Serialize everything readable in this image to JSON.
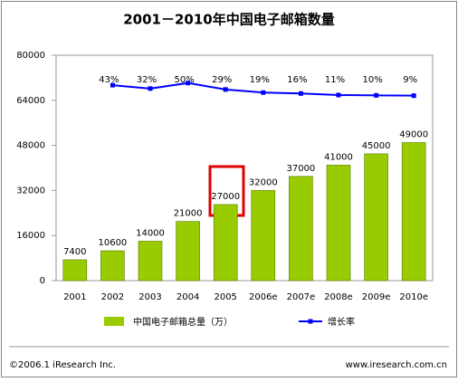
{
  "chart_data": {
    "type": "bar",
    "title": "2001－2010年中国电子邮箱数量",
    "categories": [
      "2001",
      "2002",
      "2003",
      "2004",
      "2005",
      "2006e",
      "2007e",
      "2008e",
      "2009e",
      "2010e"
    ],
    "series": [
      {
        "name": "中国电子邮箱总量（万）",
        "color": "#99cc00",
        "values": [
          7400,
          10600,
          14000,
          21000,
          27000,
          32000,
          37000,
          41000,
          45000,
          49000
        ]
      },
      {
        "name": "增长率",
        "color": "#0000ff",
        "type": "line",
        "axis": "y2",
        "values": [
          null,
          43,
          32,
          50,
          29,
          19,
          16,
          11,
          10,
          9
        ],
        "value_labels": [
          null,
          "43%",
          "32%",
          "50%",
          "29%",
          "19%",
          "16%",
          "11%",
          "10%",
          "9%"
        ]
      }
    ],
    "ylim": [
      0,
      80000
    ],
    "yticks": [
      0,
      16000,
      32000,
      48000,
      64000,
      80000
    ],
    "y2lim": [
      -590,
      140
    ],
    "grid": false,
    "legend": "bottom",
    "footer_left": "©2006.1 iResearch Inc.",
    "footer_right": "www.iresearch.com.cn"
  }
}
